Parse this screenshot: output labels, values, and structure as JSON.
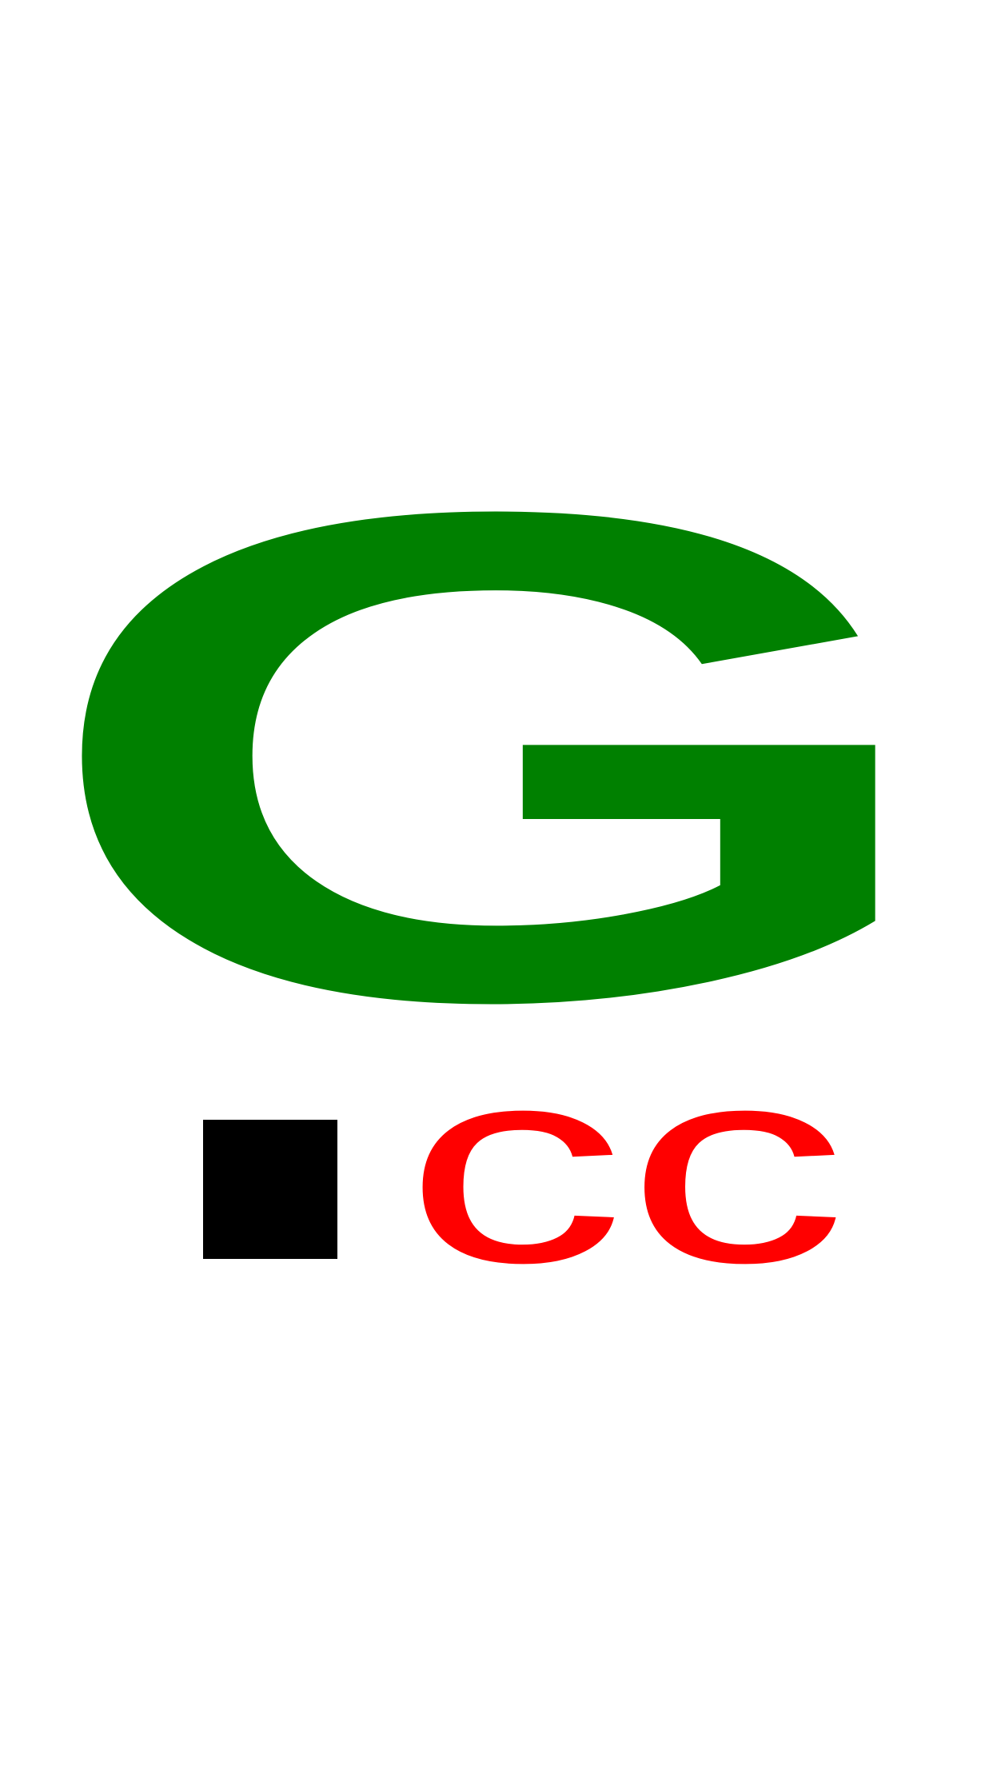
{
  "logo": {
    "main_letter": "G",
    "domain_dot": ".",
    "domain_suffix": "cc",
    "colors": {
      "main_letter": "#008000",
      "domain_dot": "#000000",
      "domain_suffix": "#ff0000",
      "background": "#ffffff"
    }
  }
}
